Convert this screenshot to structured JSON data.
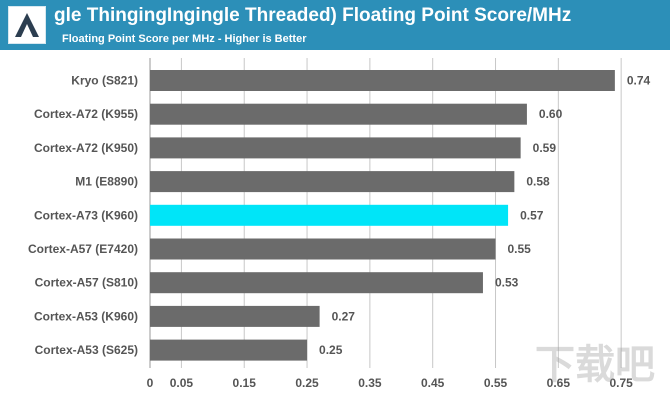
{
  "header": {
    "title": "gle ThingingIngingle Threaded) Floating Point Score/MHz",
    "subtitle": "Floating Point Score per MHz - Higher is Better"
  },
  "watermark": {
    "text": "下载吧"
  },
  "colors": {
    "header_bg": "#2c8fb8",
    "bar_default": "#6b6b6b",
    "bar_highlight": "#00e5f8",
    "grid": "#c8c8c8",
    "label": "#555555"
  },
  "chart_data": {
    "type": "bar",
    "orientation": "horizontal",
    "title": "gle ThingingIngingle Threaded) Floating Point Score/MHz",
    "subtitle": "Floating Point Score per MHz - Higher is Better",
    "categories": [
      "Kryo (S821)",
      "Cortex-A72 (K955)",
      "Cortex-A72 (K950)",
      "M1 (E8890)",
      "Cortex-A73 (K960)",
      "Cortex-A57 (E7420)",
      "Cortex-A57 (S810)",
      "Cortex-A53 (K960)",
      "Cortex-A53 (S625)"
    ],
    "values": [
      0.74,
      0.6,
      0.59,
      0.58,
      0.57,
      0.55,
      0.53,
      0.27,
      0.25
    ],
    "value_labels": [
      "0.74",
      "0.60",
      "0.59",
      "0.58",
      "0.57",
      "0.55",
      "0.53",
      "0.27",
      "0.25"
    ],
    "highlight": "Cortex-A73 (K960)",
    "xlim": [
      0,
      0.78
    ],
    "x_ticks": [
      0,
      0.05,
      0.15,
      0.25,
      0.35,
      0.45,
      0.55,
      0.65,
      0.75
    ],
    "x_tick_labels": [
      "0",
      "0.05",
      "0.15",
      "0.25",
      "0.35",
      "0.45",
      "0.55",
      "0.65",
      "0.75"
    ],
    "grid": true,
    "legend": "none"
  }
}
